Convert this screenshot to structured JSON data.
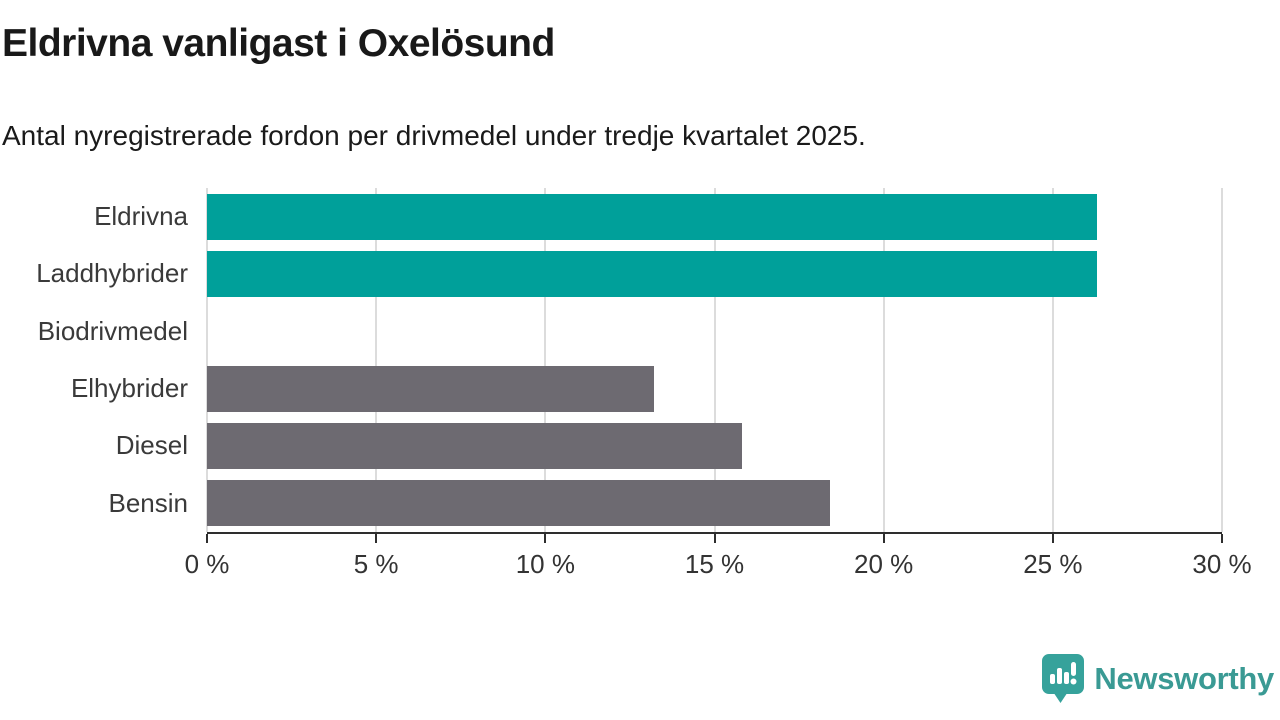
{
  "header": {
    "title": "Eldrivna vanligast i Oxelösund",
    "subtitle": "Antal nyregistrerade fordon per drivmedel under tredje kvartalet 2025."
  },
  "chart_data": {
    "type": "bar",
    "orientation": "horizontal",
    "title": "Eldrivna vanligast i Oxelösund",
    "subtitle": "Antal nyregistrerade fordon per drivmedel under tredje kvartalet 2025.",
    "categories": [
      "Eldrivna",
      "Laddhybrider",
      "Biodrivmedel",
      "Elhybrider",
      "Diesel",
      "Bensin"
    ],
    "values": [
      26.3,
      26.3,
      0,
      13.2,
      15.8,
      18.4
    ],
    "unit": "%",
    "xlim": [
      0,
      30
    ],
    "xtick_step": 5,
    "tick_labels": [
      "0 %",
      "5 %",
      "10 %",
      "15 %",
      "20 %",
      "25 %",
      "30 %"
    ],
    "bar_colors": [
      "#00a09a",
      "#00a09a",
      "#6d6a71",
      "#6d6a71",
      "#6d6a71",
      "#6d6a71"
    ],
    "highlight_color": "#00a09a",
    "default_color": "#6d6a71",
    "gridline_color": "#dcdcdc",
    "axis_color": "#2e2e2e",
    "grid": true,
    "legend": false
  },
  "footer": {
    "brand": "Newsworthy",
    "brand_color": "#3a9a94",
    "logo_icon": "speech-bubble-bar-chart-icon"
  }
}
